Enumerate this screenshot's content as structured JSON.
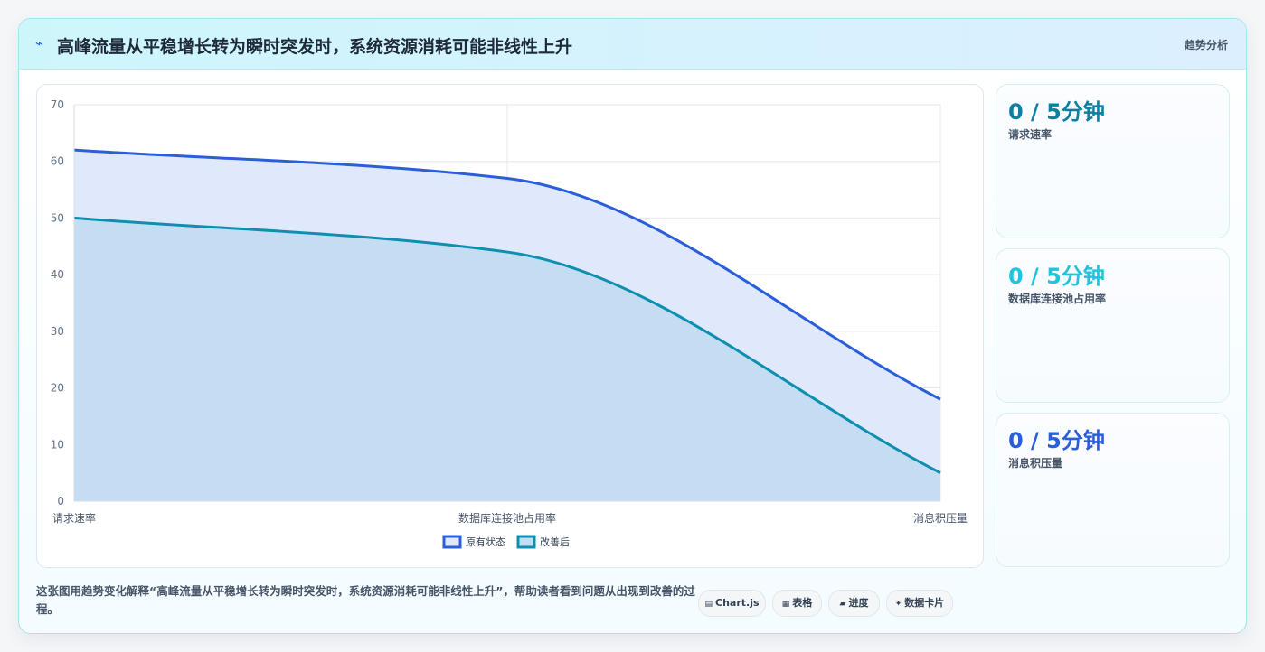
{
  "header": {
    "icon": "⌁",
    "title": "高峰流量从平稳增长转为瞬时突发时，系统资源消耗可能非线性上升",
    "tag": "趋势分析"
  },
  "chart_data": {
    "type": "area",
    "categories": [
      "请求速率",
      "数据库连接池占用率",
      "消息积压量"
    ],
    "series": [
      {
        "name": "原有状态",
        "values": [
          62,
          57,
          18
        ],
        "color": "#2b5fd9",
        "fill": "#dfe9fb"
      },
      {
        "name": "改善后",
        "values": [
          50,
          44,
          5
        ],
        "color": "#0e8fb0",
        "fill": "#c4ddf2"
      }
    ],
    "ylim": [
      0,
      70
    ],
    "yticks": [
      0,
      10,
      20,
      30,
      40,
      50,
      60,
      70
    ],
    "grid": true,
    "legend": "bottom",
    "smooth": true
  },
  "stats": [
    {
      "value": "0 / 5分钟",
      "label": "请求速率",
      "color": "#0e7fa3"
    },
    {
      "value": "0 / 5分钟",
      "label": "数据库连接池占用率",
      "color": "#22c3dc"
    },
    {
      "value": "0 / 5分钟",
      "label": "消息积压量",
      "color": "#2b5fd9"
    }
  ],
  "footer": {
    "description": "这张图用趋势变化解释“高峰流量从平稳增长转为瞬时突发时，系统资源消耗可能非线性上升”，帮助读者看到问题从出现到改善的过程。",
    "pills": [
      {
        "icon": "▤",
        "label": "Chart.js",
        "icon_name": "chart-icon"
      },
      {
        "icon": "▦",
        "label": "表格",
        "icon_name": "table-icon"
      },
      {
        "icon": "▰",
        "label": "进度",
        "icon_name": "progress-icon"
      },
      {
        "icon": "✦",
        "label": "数据卡片",
        "icon_name": "sparkle-icon"
      }
    ]
  }
}
